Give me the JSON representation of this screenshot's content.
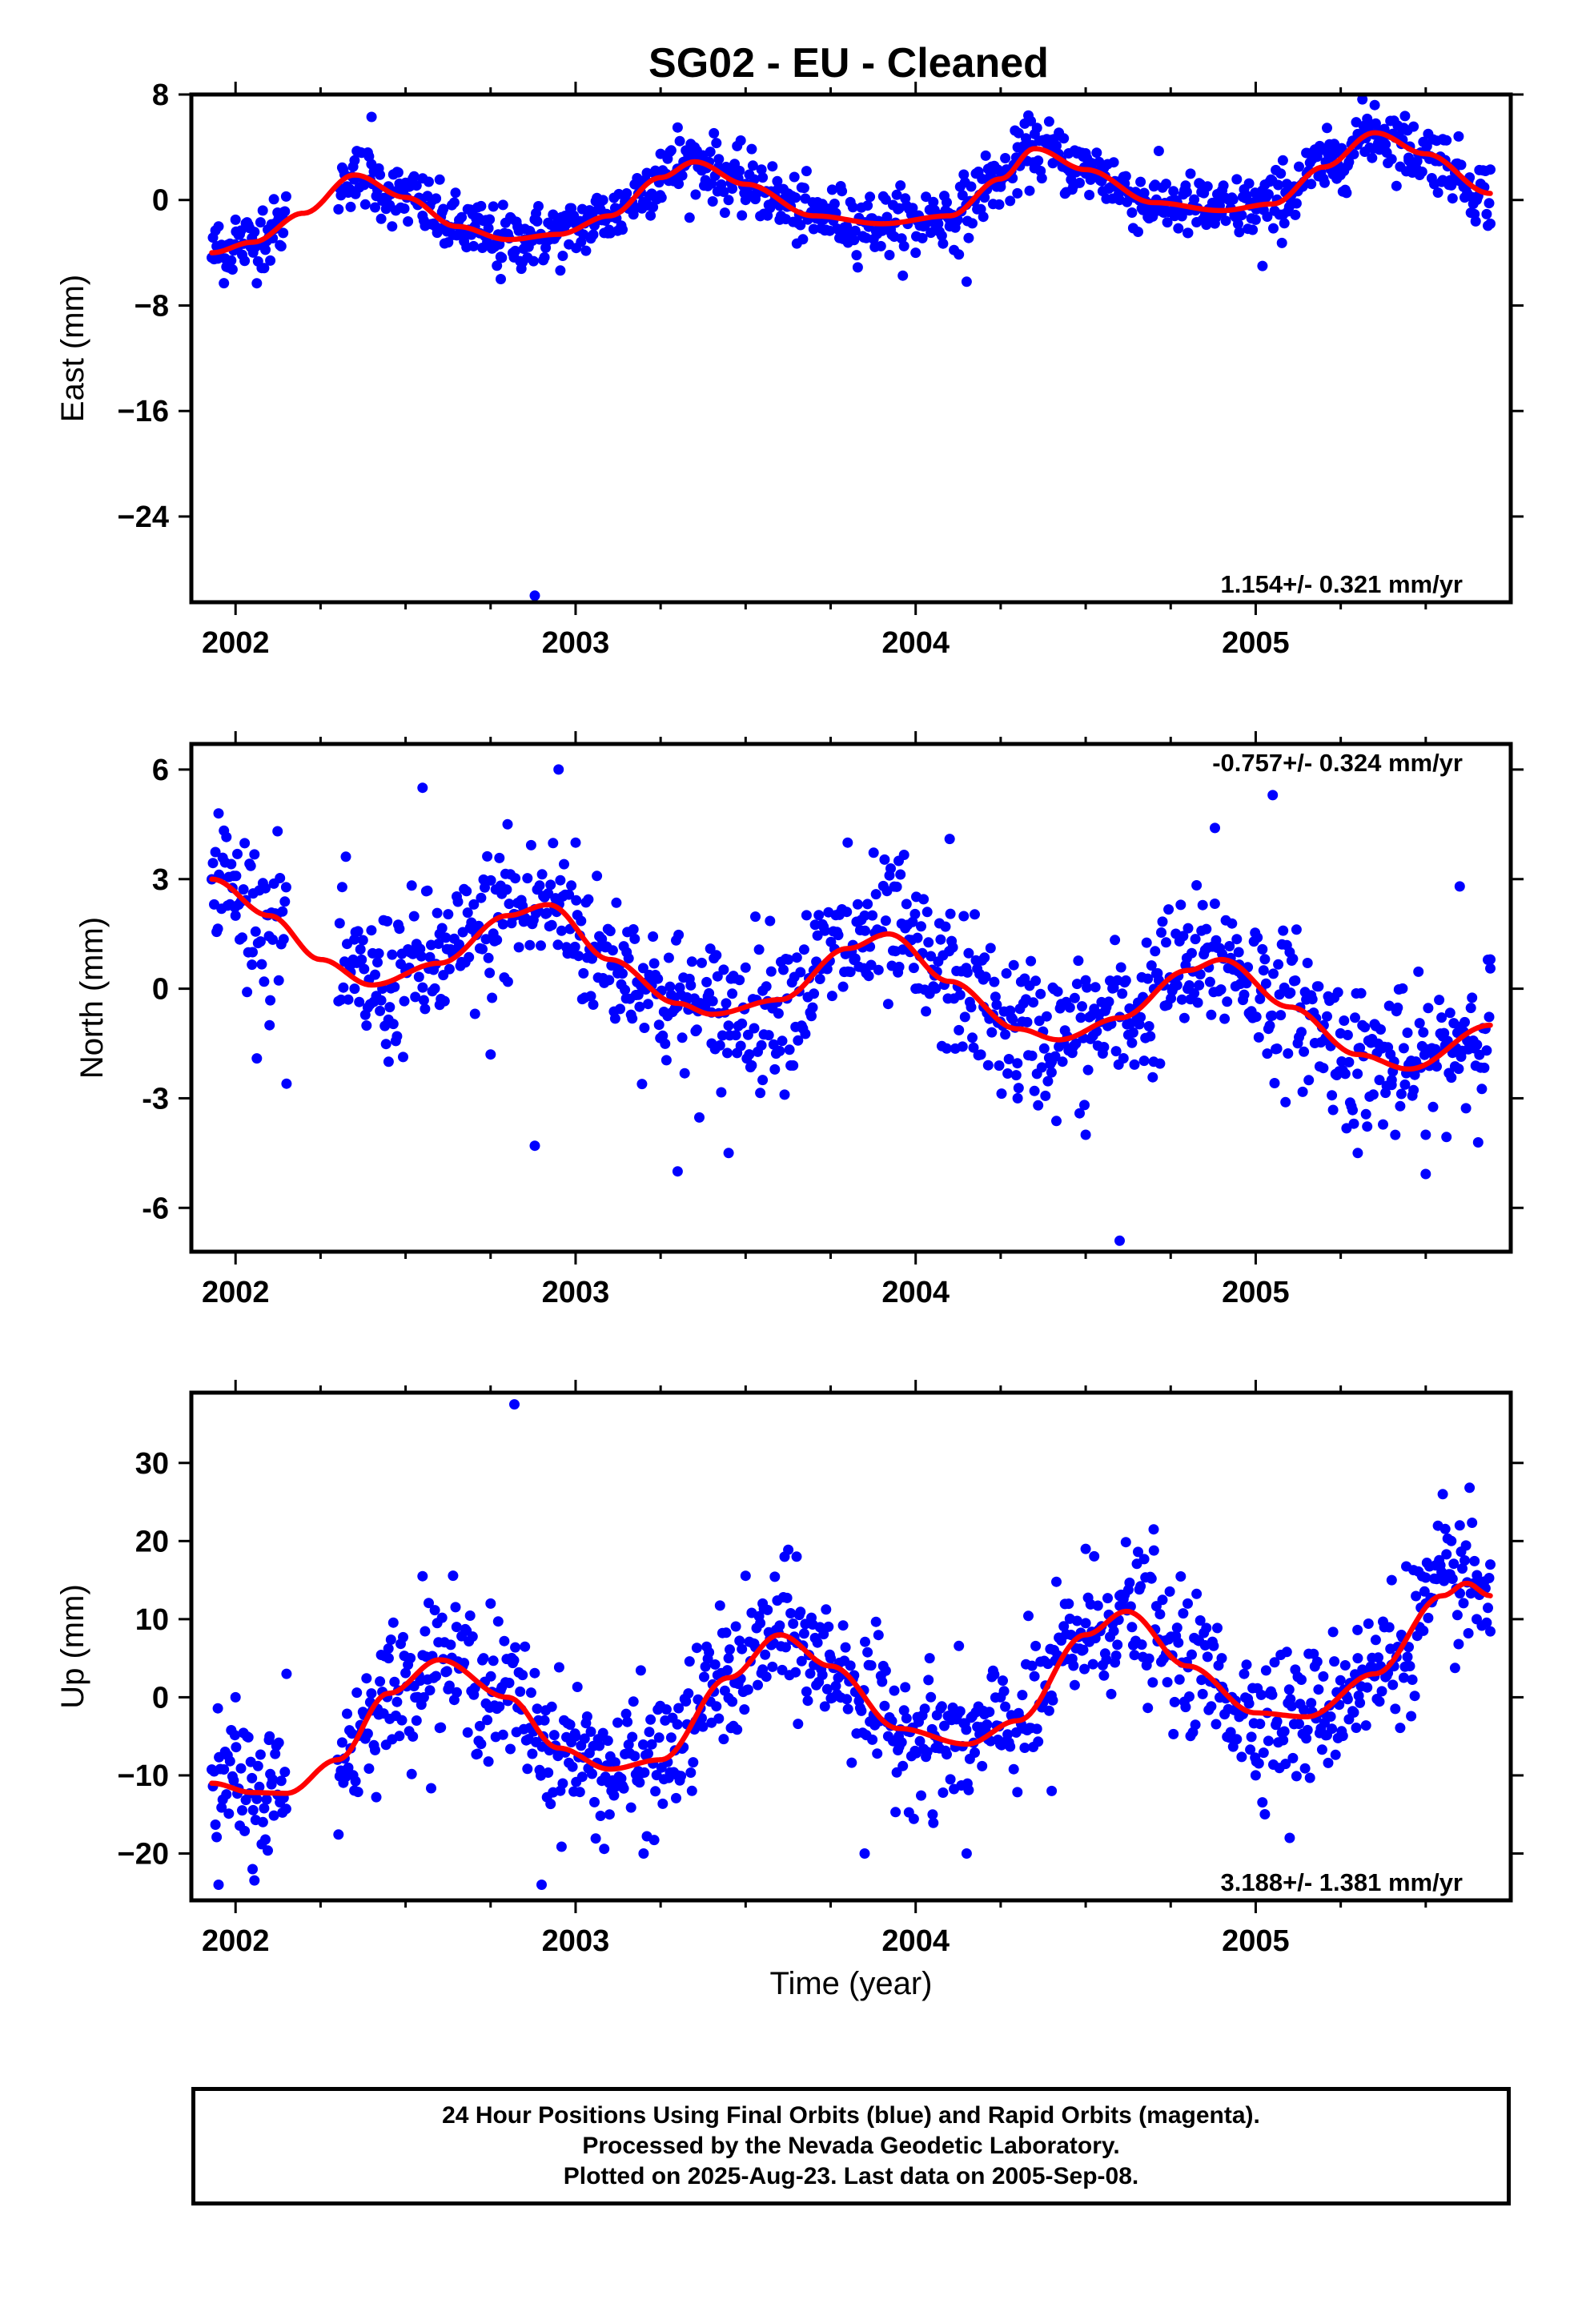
{
  "title": "SG02  - EU - Cleaned",
  "footer": {
    "line1": "24 Hour Positions Using Final Orbits (blue) and Rapid Orbits (magenta).",
    "line2": "Processed by the Nevada Geodetic Laboratory.",
    "line3": "Plotted on 2025-Aug-23. Last data on 2005-Sep-08."
  },
  "colors": {
    "final_orbits": "#0000ff",
    "fit": "#ff0000",
    "frame": "#000000"
  },
  "chart_data": [
    {
      "type": "scatter",
      "ylabel": "East (mm)",
      "xlim": [
        2001.87,
        2005.75
      ],
      "ylim": [
        -30.5,
        8
      ],
      "xticks": [
        "2002",
        "2003",
        "2004",
        "2005"
      ],
      "yticks": [
        "8",
        "0",
        "−8",
        "−16",
        "−24"
      ],
      "rate_label": "1.154+/- 0.321 mm/yr",
      "rate_position": "bottom-right",
      "x_start": 2001.93,
      "x_end": 2005.69,
      "series": [
        {
          "name": "",
          "kind": "points",
          "color": "#0000ff"
        },
        {
          "name": "",
          "kind": "fit-line",
          "color": "#ff0000"
        }
      ],
      "fit_anchors_x": [
        2001.93,
        2002.05,
        2002.2,
        2002.35,
        2002.5,
        2002.65,
        2002.8,
        2002.95,
        2003.1,
        2003.25,
        2003.35,
        2003.5,
        2003.7,
        2003.9,
        2004.1,
        2004.25,
        2004.35,
        2004.5,
        2004.7,
        2004.9,
        2005.05,
        2005.2,
        2005.35,
        2005.5,
        2005.69
      ],
      "fit_anchors_y": [
        -4.0,
        -3.2,
        -1.0,
        1.9,
        0.2,
        -2.0,
        -3.0,
        -2.6,
        -1.2,
        1.7,
        2.9,
        1.2,
        -1.2,
        -1.8,
        -1.2,
        1.6,
        3.9,
        2.3,
        -0.2,
        -0.8,
        -0.3,
        2.5,
        5.1,
        3.5,
        0.5
      ],
      "points_x": [
        2001.95,
        2002.0,
        2002.08,
        2002.14,
        2002.35,
        2002.4,
        2002.45,
        2002.55,
        2002.7,
        2002.78,
        2002.85,
        2002.95,
        2003.05,
        2003.15,
        2003.25,
        2003.3,
        2003.35,
        2003.42,
        2003.5,
        2003.6,
        2003.7,
        2003.8,
        2003.9,
        2004.0,
        2004.1,
        2004.15,
        2004.25,
        2004.3,
        2004.35,
        2004.42,
        2004.5,
        2004.6,
        2004.7,
        2004.8,
        2004.9,
        2005.0,
        2005.02,
        2005.08,
        2005.15,
        2005.25,
        2005.3,
        2005.35,
        2005.45,
        2005.55,
        2005.65,
        2005.69
      ],
      "points_y": [
        -2.0,
        -1.5,
        -0.8,
        -2.5,
        3.0,
        6.3,
        1.0,
        -1.2,
        -3.5,
        -6.0,
        -3.0,
        -2.0,
        -1.0,
        0.5,
        3.5,
        5.5,
        4.0,
        2.5,
        0.0,
        -1.5,
        -2.2,
        -3.0,
        -2.0,
        -4.0,
        -2.0,
        -6.2,
        1.0,
        4.0,
        5.0,
        3.5,
        2.0,
        0.0,
        -1.0,
        -2.5,
        -1.0,
        -1.5,
        -5.0,
        3.0,
        2.0,
        3.5,
        5.0,
        7.2,
        3.0,
        1.5,
        0.0,
        -1.8
      ],
      "outliers": [
        {
          "x": 2002.88,
          "y": -30.0
        }
      ]
    },
    {
      "type": "scatter",
      "ylabel": "North (mm)",
      "xlim": [
        2001.87,
        2005.75
      ],
      "ylim": [
        -7.2,
        6.7
      ],
      "xticks": [
        "2002",
        "2003",
        "2004",
        "2005"
      ],
      "yticks": [
        "6",
        "3",
        "0",
        "-3",
        "-6"
      ],
      "rate_label": "-0.757+/- 0.324 mm/yr",
      "rate_position": "top-right",
      "x_start": 2001.93,
      "x_end": 2005.69,
      "series": [
        {
          "name": "",
          "kind": "points",
          "color": "#0000ff"
        },
        {
          "name": "",
          "kind": "fit-line",
          "color": "#ff0000"
        }
      ],
      "fit_anchors_x": [
        2001.93,
        2002.1,
        2002.25,
        2002.4,
        2002.6,
        2002.8,
        2002.92,
        2003.1,
        2003.3,
        2003.4,
        2003.6,
        2003.8,
        2003.92,
        2004.1,
        2004.3,
        2004.42,
        2004.6,
        2004.8,
        2004.9,
        2005.1,
        2005.3,
        2005.45,
        2005.69
      ],
      "fit_anchors_y": [
        3.0,
        2.0,
        0.8,
        0.1,
        0.7,
        2.0,
        2.3,
        0.8,
        -0.4,
        -0.7,
        -0.3,
        1.1,
        1.5,
        0.2,
        -1.1,
        -1.4,
        -0.8,
        0.5,
        0.8,
        -0.5,
        -1.8,
        -2.2,
        -1.0
      ],
      "points_x": [
        2001.95,
        2002.0,
        2002.05,
        2002.1,
        2002.15,
        2002.35,
        2002.45,
        2002.55,
        2002.6,
        2002.75,
        2002.8,
        2002.88,
        2002.95,
        2003.0,
        2003.15,
        2003.3,
        2003.4,
        2003.45,
        2003.55,
        2003.7,
        2003.8,
        2003.85,
        2003.95,
        2004.0,
        2004.1,
        2004.2,
        2004.3,
        2004.4,
        2004.5,
        2004.6,
        2004.7,
        2004.8,
        2004.88,
        2004.95,
        2005.05,
        2005.1,
        2005.2,
        2005.3,
        2005.4,
        2005.5,
        2005.6,
        2005.69
      ],
      "points_y": [
        4.8,
        2.0,
        1.0,
        -1.0,
        -2.6,
        0.0,
        -2.0,
        5.5,
        1.5,
        -1.8,
        4.5,
        -4.3,
        6.0,
        4.0,
        1.0,
        -5.0,
        -1.5,
        -4.5,
        -2.5,
        0.5,
        4.0,
        2.0,
        3.5,
        0.0,
        4.1,
        -0.5,
        -3.0,
        -2.0,
        -4.0,
        -6.9,
        -2.0,
        0.0,
        4.4,
        1.0,
        5.3,
        1.0,
        -1.0,
        -4.5,
        -2.5,
        -4.0,
        2.8,
        0.8
      ],
      "outliers": []
    },
    {
      "type": "scatter",
      "ylabel": "Up (mm)",
      "xlabel": "Time (year)",
      "xlim": [
        2001.87,
        2005.75
      ],
      "ylim": [
        -26,
        39
      ],
      "xticks": [
        "2002",
        "2003",
        "2004",
        "2005"
      ],
      "yticks": [
        "30",
        "20",
        "10",
        "0",
        "−10",
        "−20"
      ],
      "rate_label": "3.188+/- 1.381 mm/yr",
      "rate_position": "bottom-right",
      "x_start": 2001.93,
      "x_end": 2005.69,
      "series": [
        {
          "name": "",
          "kind": "points",
          "color": "#0000ff"
        },
        {
          "name": "",
          "kind": "fit-line",
          "color": "#ff0000"
        }
      ],
      "fit_anchors_x": [
        2001.93,
        2002.05,
        2002.15,
        2002.3,
        2002.45,
        2002.6,
        2002.8,
        2002.95,
        2003.1,
        2003.25,
        2003.45,
        2003.6,
        2003.75,
        2003.95,
        2004.15,
        2004.3,
        2004.5,
        2004.62,
        2004.8,
        2005.0,
        2005.15,
        2005.35,
        2005.55,
        2005.62,
        2005.69
      ],
      "fit_anchors_y": [
        -11.0,
        -12.2,
        -12.3,
        -8.0,
        0.5,
        4.8,
        0.0,
        -6.5,
        -9.2,
        -8.0,
        2.5,
        8.0,
        4.0,
        -4.0,
        -6.0,
        -3.0,
        8.0,
        11.0,
        4.0,
        -2.0,
        -2.5,
        3.0,
        13.0,
        14.6,
        13.0
      ],
      "points_x": [
        2001.95,
        2002.0,
        2002.05,
        2002.1,
        2002.15,
        2002.3,
        2002.45,
        2002.55,
        2002.65,
        2002.75,
        2002.82,
        2002.9,
        2003.0,
        2003.1,
        2003.2,
        2003.3,
        2003.45,
        2003.55,
        2003.65,
        2003.75,
        2003.85,
        2003.95,
        2004.05,
        2004.15,
        2004.25,
        2004.4,
        2004.5,
        2004.6,
        2004.7,
        2004.8,
        2004.9,
        2005.0,
        2005.1,
        2005.2,
        2005.3,
        2005.4,
        2005.5,
        2005.55,
        2005.6,
        2005.65,
        2005.69
      ],
      "points_y": [
        -24.0,
        0.0,
        -22.0,
        -5.0,
        3.0,
        -8.0,
        5.0,
        15.5,
        9.0,
        12.0,
        37.5,
        -24.0,
        -5.0,
        -15.0,
        -20.0,
        -10.0,
        5.0,
        12.0,
        18.0,
        5.0,
        -20.0,
        -5.0,
        -15.0,
        -20.0,
        0.0,
        -12.0,
        19.0,
        13.0,
        21.5,
        12.0,
        5.0,
        -10.0,
        -18.0,
        -2.0,
        5.0,
        15.0,
        12.0,
        26.0,
        22.0,
        10.0,
        17.0
      ],
      "outliers": []
    }
  ]
}
